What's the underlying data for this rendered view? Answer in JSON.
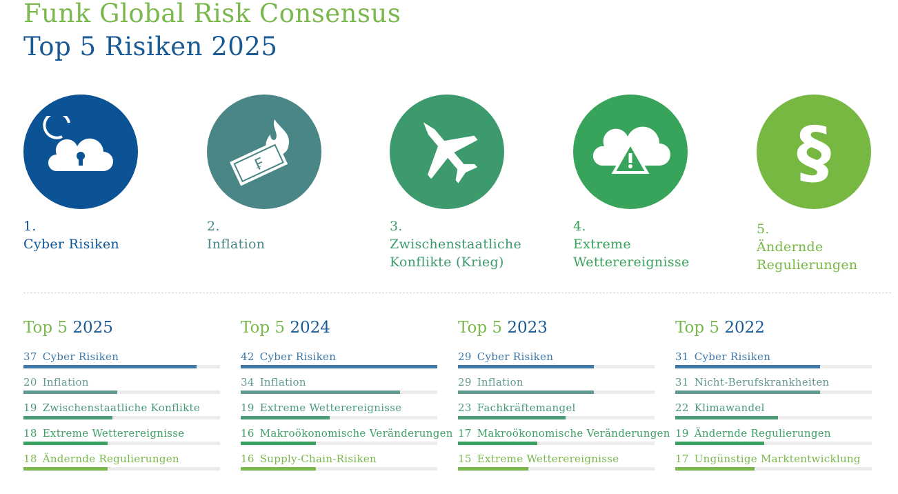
{
  "title": "Funk Global Risk Consensus",
  "subtitle": "Top 5 Risiken 2025",
  "top_risks": [
    {
      "rank": "1.",
      "label": "Cyber Risiken",
      "icon": "cloud-lock-icon",
      "color": "#0b5394"
    },
    {
      "rank": "2.",
      "label": "Inflation",
      "icon": "burning-money-icon",
      "color": "#4a8686"
    },
    {
      "rank": "3.",
      "label": "Zwischenstaatliche Konflikte (Krieg)",
      "icon": "fighter-jet-icon",
      "color": "#3d9a6c"
    },
    {
      "rank": "4.",
      "label": "Extreme Wetterereignisse",
      "icon": "cloud-warning-icon",
      "color": "#38a35a"
    },
    {
      "rank": "5.",
      "label": "Ändernde Regulierungen",
      "icon": "paragraph-icon",
      "color": "#77b843"
    }
  ],
  "row_colors": [
    "#3e78a8",
    "#5f9a90",
    "#4a9a78",
    "#3aa062",
    "#7ab84e"
  ],
  "max_value": 42,
  "columns": [
    {
      "prefix": "Top 5",
      "year": "2025",
      "items": [
        {
          "value": 37,
          "label": "Cyber Risiken"
        },
        {
          "value": 20,
          "label": "Inflation"
        },
        {
          "value": 19,
          "label": "Zwischenstaatliche Konflikte"
        },
        {
          "value": 18,
          "label": "Extreme Wetterereignisse"
        },
        {
          "value": 18,
          "label": "Ändernde Regulierungen"
        }
      ]
    },
    {
      "prefix": "Top 5",
      "year": "2024",
      "items": [
        {
          "value": 42,
          "label": "Cyber Risiken"
        },
        {
          "value": 34,
          "label": "Inflation"
        },
        {
          "value": 19,
          "label": "Extreme Wetterereignisse"
        },
        {
          "value": 16,
          "label": "Makroökonomische Veränderungen"
        },
        {
          "value": 16,
          "label": "Supply-Chain-Risiken"
        }
      ]
    },
    {
      "prefix": "Top 5",
      "year": "2023",
      "items": [
        {
          "value": 29,
          "label": "Cyber Risiken"
        },
        {
          "value": 29,
          "label": "Inflation"
        },
        {
          "value": 23,
          "label": "Fachkräftemangel"
        },
        {
          "value": 17,
          "label": "Makroökonomische Veränderungen"
        },
        {
          "value": 15,
          "label": "Extreme Wetterereignisse"
        }
      ]
    },
    {
      "prefix": "Top 5",
      "year": "2022",
      "items": [
        {
          "value": 31,
          "label": "Cyber Risiken"
        },
        {
          "value": 31,
          "label": "Nicht-Berufskrankheiten"
        },
        {
          "value": 22,
          "label": "Klimawandel"
        },
        {
          "value": 19,
          "label": "Ändernde Regulierungen"
        },
        {
          "value": 17,
          "label": "Ungünstige Marktentwicklung"
        }
      ]
    }
  ]
}
